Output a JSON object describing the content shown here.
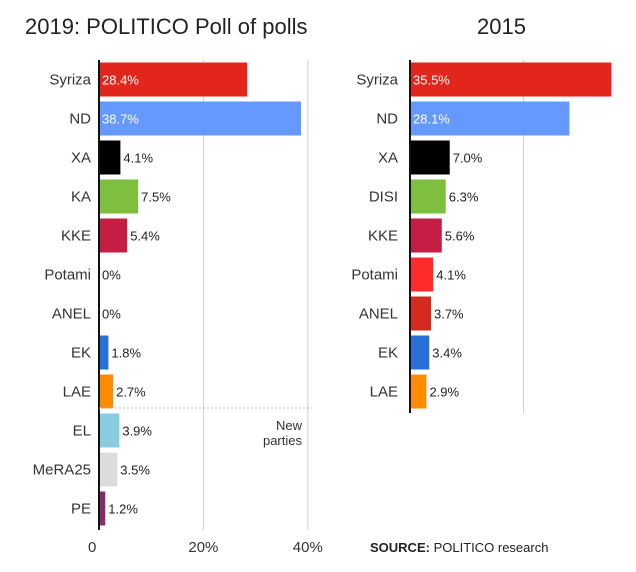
{
  "chart_data": [
    {
      "type": "bar",
      "orientation": "horizontal",
      "title": "2019: POLITICO Poll of polls",
      "categories": [
        "Syriza",
        "ND",
        "XA",
        "KA",
        "KKE",
        "Potami",
        "ANEL",
        "EK",
        "LAE",
        "EL",
        "MeRA25",
        "PE"
      ],
      "values": [
        28.4,
        38.7,
        4.1,
        7.5,
        5.4,
        0,
        0,
        1.8,
        2.7,
        3.9,
        3.5,
        1.2
      ],
      "value_labels": [
        "28.4%",
        "38.7%",
        "4.1%",
        "7.5%",
        "5.4%",
        "0%",
        "0%",
        "1.8%",
        "2.7%",
        "3.9%",
        "3.5%",
        "1.2%"
      ],
      "colors": [
        "#e3261b",
        "#6699ff",
        "#000000",
        "#7fbf3f",
        "#c41e45",
        "#ff2a2a",
        "#d62a1f",
        "#2a6fd6",
        "#ff8c00",
        "#88cce0",
        "#dcdcdc",
        "#8b2a6b"
      ],
      "xlim": [
        0,
        40
      ],
      "x_ticks": [
        0,
        20,
        40
      ],
      "x_tick_labels": [
        "0",
        "20%",
        "40%"
      ],
      "grid": true,
      "annotation": "New parties"
    },
    {
      "type": "bar",
      "orientation": "horizontal",
      "title": "2015",
      "categories": [
        "Syriza",
        "ND",
        "XA",
        "DISI",
        "KKE",
        "Potami",
        "ANEL",
        "EK",
        "LAE"
      ],
      "values": [
        35.5,
        28.1,
        7.0,
        6.3,
        5.6,
        4.1,
        3.7,
        3.4,
        2.9
      ],
      "value_labels": [
        "35.5%",
        "28.1%",
        "7.0%",
        "6.3%",
        "5.6%",
        "4.1%",
        "3.7%",
        "3.4%",
        "2.9%"
      ],
      "colors": [
        "#e3261b",
        "#6699ff",
        "#000000",
        "#7fbf3f",
        "#c41e45",
        "#ff2a2a",
        "#d62a1f",
        "#2a6fd6",
        "#ff8c00"
      ],
      "xlim": [
        0,
        40
      ],
      "grid": true
    }
  ],
  "source": {
    "label": "SOURCE:",
    "text": "POLITICO research"
  }
}
